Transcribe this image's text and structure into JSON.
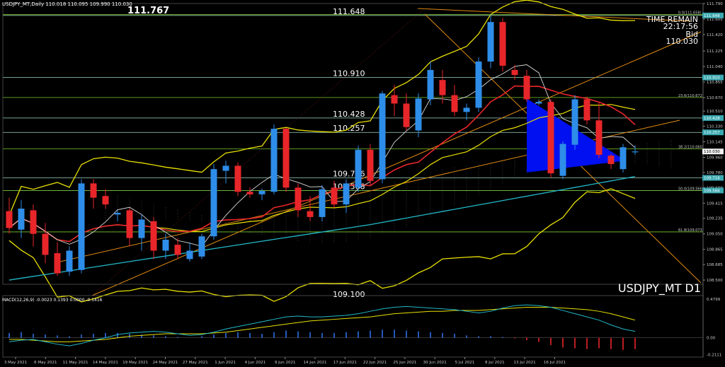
{
  "header": {
    "symbol_info": "USDJPY_MT,Daily  110.018 110.095 109.990 110.030",
    "big_price": "111.767"
  },
  "info_panel": {
    "line1": "TIME REMAIN",
    "line2": "22:17:56",
    "line3": "Bid",
    "line4": "110.030"
  },
  "watermark": "USDJPY_MT D1",
  "colors": {
    "bull": "#2e8de8",
    "bear": "#e8262a",
    "channel": "#e08a12",
    "bollinger": "#e8e000",
    "ma_fast": "#e8262a",
    "ma_slow": "#e8e000",
    "ma_cyan": "#21b8c8",
    "envelope": "#d8d8d8",
    "hline": "#9ed7c4",
    "triangle": "#0010f0",
    "macd_signal": "#e8e000",
    "macd_line": "#21b8c8"
  },
  "chart_data": [
    {
      "type": "candlestick",
      "ylim": [
        108.45,
        111.79
      ],
      "y_ticks": [
        "111.790",
        "111.605",
        "111.420",
        "111.225",
        "111.040",
        "110.855",
        "110.670",
        "110.510",
        "110.330",
        "110.145",
        "109.960",
        "109.780",
        "109.600",
        "109.415",
        "109.235",
        "109.050",
        "108.865",
        "108.685",
        "108.500"
      ],
      "x_labels": [
        "3 May 2021",
        "6 May 2021",
        "11 May 2021",
        "14 May 2021",
        "19 May 2021",
        "24 May 2021",
        "27 May 2021",
        "1 Jun 2021",
        "4 Jun 2021",
        "9 Jun 2021",
        "14 Jun 2021",
        "17 Jun 2021",
        "22 Jun 2021",
        "25 Jun 2021",
        "30 Jun 2021",
        "5 Jul 2021",
        "8 Jul 2021",
        "13 Jul 2021",
        "16 Jul 2021"
      ],
      "candles": [
        {
          "o": 109.32,
          "h": 109.48,
          "l": 109.05,
          "c": 109.12
        },
        {
          "o": 109.1,
          "h": 109.45,
          "l": 109.0,
          "c": 109.35
        },
        {
          "o": 109.33,
          "h": 109.4,
          "l": 108.9,
          "c": 109.05
        },
        {
          "o": 109.05,
          "h": 109.18,
          "l": 108.7,
          "c": 108.8
        },
        {
          "o": 108.82,
          "h": 108.95,
          "l": 108.55,
          "c": 108.58
        },
        {
          "o": 108.6,
          "h": 108.9,
          "l": 108.55,
          "c": 108.85
        },
        {
          "o": 108.62,
          "h": 109.7,
          "l": 108.58,
          "c": 109.65
        },
        {
          "o": 109.65,
          "h": 109.7,
          "l": 109.35,
          "c": 109.48
        },
        {
          "o": 109.5,
          "h": 109.58,
          "l": 109.35,
          "c": 109.4
        },
        {
          "o": 109.28,
          "h": 109.33,
          "l": 109.2,
          "c": 109.3
        },
        {
          "o": 109.33,
          "h": 109.36,
          "l": 108.9,
          "c": 109.0
        },
        {
          "o": 109.0,
          "h": 109.28,
          "l": 108.85,
          "c": 109.22
        },
        {
          "o": 109.2,
          "h": 109.25,
          "l": 108.75,
          "c": 108.85
        },
        {
          "o": 108.85,
          "h": 109.05,
          "l": 108.75,
          "c": 108.98
        },
        {
          "o": 108.92,
          "h": 109.0,
          "l": 108.75,
          "c": 108.8
        },
        {
          "o": 108.75,
          "h": 108.95,
          "l": 108.72,
          "c": 108.85
        },
        {
          "o": 108.78,
          "h": 109.05,
          "l": 108.75,
          "c": 109.02
        },
        {
          "o": 109.02,
          "h": 109.88,
          "l": 108.98,
          "c": 109.82
        },
        {
          "o": 109.8,
          "h": 109.92,
          "l": 109.65,
          "c": 109.86
        },
        {
          "o": 109.86,
          "h": 109.9,
          "l": 109.5,
          "c": 109.55
        },
        {
          "o": 109.55,
          "h": 109.6,
          "l": 109.48,
          "c": 109.52
        },
        {
          "o": 109.52,
          "h": 109.59,
          "l": 109.45,
          "c": 109.56
        },
        {
          "o": 109.55,
          "h": 110.35,
          "l": 109.52,
          "c": 110.3
        },
        {
          "o": 110.3,
          "h": 110.31,
          "l": 109.55,
          "c": 109.6
        },
        {
          "o": 109.6,
          "h": 109.65,
          "l": 109.25,
          "c": 109.33
        },
        {
          "o": 109.32,
          "h": 109.5,
          "l": 109.2,
          "c": 109.25
        },
        {
          "o": 109.25,
          "h": 109.63,
          "l": 109.2,
          "c": 109.58
        },
        {
          "o": 109.6,
          "h": 109.68,
          "l": 109.36,
          "c": 109.4
        },
        {
          "o": 109.4,
          "h": 109.7,
          "l": 109.3,
          "c": 109.65
        },
        {
          "o": 109.6,
          "h": 110.1,
          "l": 109.55,
          "c": 110.05
        },
        {
          "o": 110.05,
          "h": 110.12,
          "l": 109.62,
          "c": 109.68
        },
        {
          "o": 109.7,
          "h": 110.75,
          "l": 109.65,
          "c": 110.72
        },
        {
          "o": 110.7,
          "h": 110.82,
          "l": 110.45,
          "c": 110.6
        },
        {
          "o": 110.6,
          "h": 110.72,
          "l": 110.28,
          "c": 110.32
        },
        {
          "o": 110.28,
          "h": 110.72,
          "l": 110.2,
          "c": 110.66
        },
        {
          "o": 110.65,
          "h": 111.1,
          "l": 110.58,
          "c": 111.0
        },
        {
          "o": 110.88,
          "h": 111.0,
          "l": 110.6,
          "c": 110.7
        },
        {
          "o": 110.7,
          "h": 110.82,
          "l": 110.45,
          "c": 110.5
        },
        {
          "o": 110.5,
          "h": 110.6,
          "l": 110.4,
          "c": 110.55
        },
        {
          "o": 110.55,
          "h": 111.15,
          "l": 110.5,
          "c": 111.1
        },
        {
          "o": 111.1,
          "h": 111.66,
          "l": 111.02,
          "c": 111.57
        },
        {
          "o": 111.57,
          "h": 111.62,
          "l": 110.98,
          "c": 111.05
        },
        {
          "o": 111.0,
          "h": 111.06,
          "l": 110.88,
          "c": 110.94
        },
        {
          "o": 110.93,
          "h": 111.0,
          "l": 110.62,
          "c": 110.65
        },
        {
          "o": 110.6,
          "h": 110.65,
          "l": 110.58,
          "c": 110.62
        },
        {
          "o": 110.62,
          "h": 110.65,
          "l": 109.72,
          "c": 109.77
        },
        {
          "o": 109.74,
          "h": 110.15,
          "l": 109.7,
          "c": 110.12
        },
        {
          "o": 110.11,
          "h": 110.7,
          "l": 110.05,
          "c": 110.65
        },
        {
          "o": 110.65,
          "h": 110.68,
          "l": 110.35,
          "c": 110.4
        },
        {
          "o": 110.4,
          "h": 110.62,
          "l": 109.95,
          "c": 109.99
        },
        {
          "o": 109.98,
          "h": 110.0,
          "l": 109.82,
          "c": 109.88
        },
        {
          "o": 109.82,
          "h": 110.12,
          "l": 109.78,
          "c": 110.08
        },
        {
          "o": 110.02,
          "h": 110.1,
          "l": 109.99,
          "c": 110.03
        }
      ],
      "hlines": [
        {
          "price": 111.648,
          "label": "111.648"
        },
        {
          "price": 110.91,
          "label": "110.910"
        },
        {
          "price": 110.428,
          "label": "110.428"
        },
        {
          "price": 110.257,
          "label": "110.257"
        },
        {
          "price": 109.716,
          "label": "109.716"
        },
        {
          "price": 109.566,
          "label": "109.566"
        }
      ],
      "fib_levels": [
        {
          "price": 111.658,
          "label": "0.0(111.658)"
        },
        {
          "price": 110.672,
          "label": "23.6(110.672)"
        },
        {
          "price": 110.06,
          "label": "38.2(110.060)"
        },
        {
          "price": 109.566,
          "label": "50.0(109.566)"
        },
        {
          "price": 109.073,
          "label": "61.8(109.073)"
        }
      ],
      "right_boxes": [
        {
          "price": 111.648,
          "label": "111.648"
        },
        {
          "price": 110.91,
          "label": "110.910"
        },
        {
          "price": 110.428,
          "label": "110.428"
        },
        {
          "price": 110.257,
          "label": "110.257"
        },
        {
          "price": 110.03,
          "label": "110.030"
        },
        {
          "price": 109.716,
          "label": "109.716"
        },
        {
          "price": 109.566,
          "label": "109.566"
        }
      ],
      "bottom_cut_label": "109.100"
    },
    {
      "type": "macd",
      "title": "MACD(12,26,9) -0.0023 0.1393 0.0000 -0.1416",
      "ylim": [
        -0.24,
        0.49
      ],
      "y_ticks": [
        "0.4799",
        "0.00",
        "-0.2111"
      ],
      "histogram": [
        0.06,
        0.07,
        0.05,
        0.04,
        0.03,
        0.02,
        0.04,
        0.05,
        0.06,
        0.06,
        0.05,
        0.04,
        0.03,
        0.02,
        0.01,
        0.0,
        0.02,
        0.04,
        0.06,
        0.07,
        0.06,
        0.05,
        0.07,
        0.09,
        0.08,
        0.07,
        0.06,
        0.06,
        0.07,
        0.08,
        0.09,
        0.1,
        0.1,
        0.09,
        0.08,
        0.07,
        0.06,
        0.05,
        0.03,
        0.02,
        0.02,
        0.01,
        -0.01,
        -0.03,
        -0.05,
        -0.09,
        -0.12,
        -0.13,
        -0.14,
        -0.13,
        -0.14,
        -0.15,
        -0.14
      ],
      "macd": [
        -0.05,
        -0.03,
        -0.02,
        -0.05,
        -0.08,
        -0.1,
        -0.07,
        -0.03,
        0.0,
        0.04,
        0.06,
        0.07,
        0.08,
        0.07,
        0.05,
        0.03,
        0.04,
        0.07,
        0.11,
        0.14,
        0.17,
        0.2,
        0.23,
        0.26,
        0.27,
        0.26,
        0.26,
        0.27,
        0.28,
        0.3,
        0.33,
        0.36,
        0.38,
        0.39,
        0.38,
        0.37,
        0.36,
        0.35,
        0.33,
        0.31,
        0.33,
        0.37,
        0.4,
        0.41,
        0.4,
        0.38,
        0.34,
        0.3,
        0.26,
        0.22,
        0.16,
        0.11,
        0.08
      ],
      "signal": [
        -0.02,
        -0.02,
        -0.03,
        -0.04,
        -0.05,
        -0.05,
        -0.04,
        -0.03,
        -0.02,
        0.0,
        0.02,
        0.03,
        0.04,
        0.05,
        0.05,
        0.05,
        0.05,
        0.06,
        0.07,
        0.09,
        0.11,
        0.13,
        0.15,
        0.17,
        0.19,
        0.21,
        0.22,
        0.23,
        0.24,
        0.25,
        0.26,
        0.28,
        0.3,
        0.31,
        0.32,
        0.33,
        0.33,
        0.34,
        0.34,
        0.34,
        0.35,
        0.36,
        0.37,
        0.38,
        0.38,
        0.38,
        0.37,
        0.36,
        0.35,
        0.33,
        0.3,
        0.26,
        0.22
      ]
    }
  ]
}
